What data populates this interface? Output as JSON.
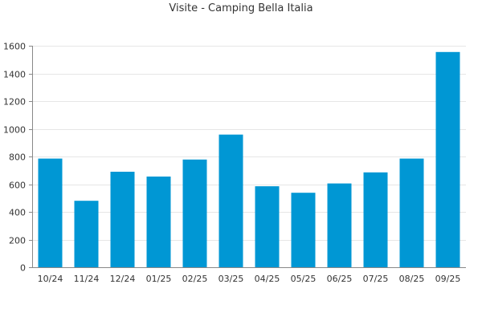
{
  "chart_data": {
    "type": "bar",
    "title": "Visite - Camping Bella Italia",
    "xlabel": "",
    "ylabel": "",
    "categories": [
      "10/24",
      "11/24",
      "12/24",
      "01/25",
      "02/25",
      "03/25",
      "04/25",
      "05/25",
      "06/25",
      "07/25",
      "08/25",
      "09/25"
    ],
    "values": [
      785,
      480,
      690,
      655,
      778,
      958,
      585,
      538,
      605,
      685,
      785,
      1555
    ],
    "ylim": [
      0,
      1600
    ],
    "yticks": [
      0,
      200,
      400,
      600,
      800,
      1000,
      1200,
      1400,
      1600
    ],
    "grid": true,
    "legend": "none",
    "bar_color": "#0097d4",
    "grid_color": "#e6e6e6",
    "axis_color": "#888888",
    "text_color": "#333333"
  }
}
